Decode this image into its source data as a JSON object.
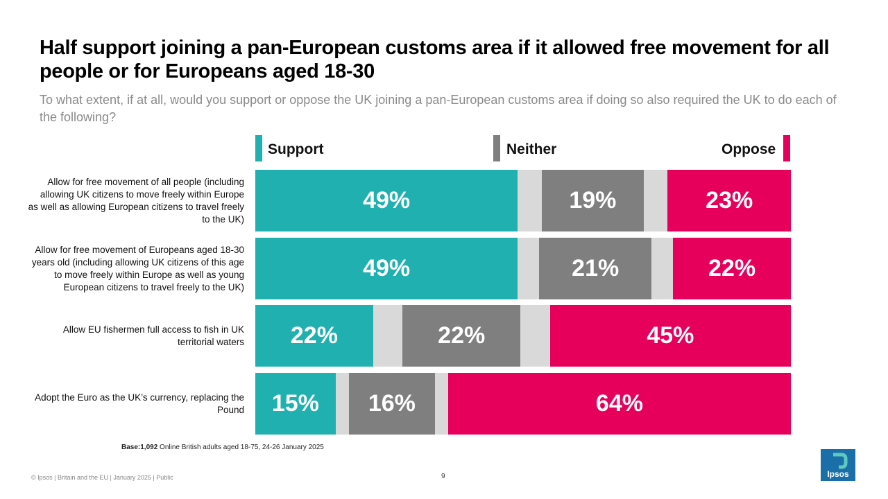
{
  "title": "Half support joining a pan-European customs area if it allowed free movement for all people or for Europeans aged 18-30",
  "subtitle": "To what extent, if at all, would you support or oppose the UK joining a pan-European customs area if doing so also required the UK to do each of the following?",
  "legend": {
    "support": "Support",
    "neither": "Neither",
    "oppose": "Oppose"
  },
  "colors": {
    "support": "#20b0b0",
    "neither": "#7f7f7f",
    "oppose": "#e6005c",
    "gap": "#d9d9d9"
  },
  "chart_data": {
    "type": "bar",
    "orientation": "horizontal-stacked",
    "categories": [
      "Allow for free movement of all people (including allowing UK citizens to move freely within Europe as well as allowing European citizens to travel freely to the UK)",
      "Allow for free movement of Europeans aged 18-30 years old (including allowing UK citizens of this age to move freely within Europe as well as young European citizens to travel freely to the UK)",
      "Allow EU fishermen full access to fish in UK territorial waters",
      "Adopt the Euro as the UK’s currency, replacing the Pound"
    ],
    "series": [
      {
        "name": "Support",
        "values": [
          49,
          49,
          22,
          15
        ]
      },
      {
        "name": "Neither",
        "values": [
          19,
          21,
          22,
          16
        ]
      },
      {
        "name": "Oppose",
        "values": [
          23,
          22,
          45,
          64
        ]
      }
    ],
    "labels": {
      "Support": [
        "49%",
        "49%",
        "22%",
        "15%"
      ],
      "Neither": [
        "19%",
        "21%",
        "22%",
        "16%"
      ],
      "Oppose": [
        "23%",
        "22%",
        "45%",
        "64%"
      ]
    },
    "xlim": [
      0,
      100
    ]
  },
  "base": {
    "bold": "Base:1,092",
    "text": " Online British adults aged 18-75, 24-26 January 2025"
  },
  "footer": "© Ipsos | Britain and the EU | January 2025 | Public",
  "page_number": "9",
  "logo_text": "Ipsos"
}
